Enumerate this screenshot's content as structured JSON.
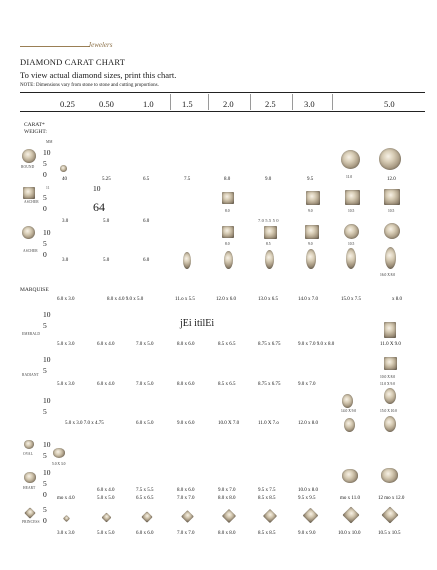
{
  "logo": "Jewelers",
  "title": "DIAMOND CARAT CHART",
  "subtitle": "To view actual diamond sizes, print this chart.",
  "note": "NOTE: Dimensions vary from stone to stone and cutting proportions.",
  "carats": [
    "0.25",
    "0.50",
    "1.0",
    "1.5",
    "2.0",
    "2.5",
    "3.0",
    "5.0"
  ],
  "labels": {
    "carat_weight": "CARAT* WEIGHT:",
    "mm": "MM",
    "round": "ROUND",
    "ascher": "ASCHER",
    "marquise": "MARQUISE",
    "emerald": "EMERALD",
    "radiant": "RADIANT",
    "oval": "OVAL",
    "heart": "HEART",
    "princess": "PRINCESS"
  },
  "stray": {
    "ten": "10",
    "five": "5",
    "zero": "0",
    "s64": "64",
    "garble": "jEi  itilEi",
    "t11": "11"
  },
  "rows": {
    "round": [
      "40",
      "5.25",
      "6.5",
      "7.5",
      "8.0",
      "9.0",
      "9.5",
      "12.0"
    ],
    "round_chips": [
      "11.0"
    ],
    "asscher": [
      "3.0",
      "5.0",
      "6.0"
    ],
    "asscher_extra": "7.0 5.5 5 0",
    "asscher_chips": [
      "8.0",
      "9.0",
      "10.5",
      "8.0",
      "8.5",
      "9.0",
      "10.5"
    ],
    "asscher2": [
      "3.0",
      "5.0",
      "6.0"
    ],
    "marquise_chip": "16.0 X 8.0",
    "marquise": [
      "6.0 x 3.0",
      "8.0 x 4.0 9.0 x 5.0",
      "11.o x 5.5",
      "12.0 x 6.0",
      "13.0 x 6.5",
      "14.0 x 7.0",
      "15.0 x 7.5",
      "x 8.0"
    ],
    "emerald": [
      "5.0 x 3.0",
      "6.0 x 4.0",
      "7.0 x 5.0",
      "8.0 x 6.0",
      "8.5 x 6.5",
      "8.75 x 6.75",
      "9.0 x 7.0 9.0 x 8.0",
      "11.0 X 9.0"
    ],
    "radiant": [
      "5.0 x 3.0",
      "6.0 x 4.0",
      "7.0 x 5.0",
      "8.0 x 6.0",
      "8.5 x 6.5",
      "8.75 x 6.75",
      "9.0 x 7.0"
    ],
    "radiant_chips": [
      "10.0 X 8.0",
      "11.0 X 9.0"
    ],
    "oval": [
      "5.0 x 3.0 7.0 x 4.75",
      "6.0 x 5.0",
      "9.0 x 6.0",
      "10.0 X 7.0",
      "11.0 X 7.o",
      "12.0 x 8.0"
    ],
    "oval_chips": [
      "14.0 X 9.0",
      "15.0 X 10.0"
    ],
    "heart_a": [
      "6.0 x 4.0",
      "7.5 x 5.5",
      "8.0 x 6.0",
      "9.0 x 7.0",
      "9.5 x 7.5",
      "10.0 x 8.0"
    ],
    "heart_b": [
      "mo x 4.0",
      "5.0 x 5.0",
      "6.5 x 6.5",
      "7.0 x 7.0",
      "8.0 x 8.0",
      "8.5 x 8.5",
      "9.5 x 9.5",
      "mo x 11.0",
      "12 mo x 12.0"
    ],
    "heart_chip": "5.0 X 3.0",
    "princess": [
      "3.0 x 3.0",
      "5.0 x 5.0",
      "6.0 x 6.0",
      "7.0 x 7.0",
      "8.0 x 8.0",
      "8.5 x 8.5",
      "9.0 x 9.0",
      "10.0 x 10.0",
      "10.5 x 10.5"
    ]
  }
}
